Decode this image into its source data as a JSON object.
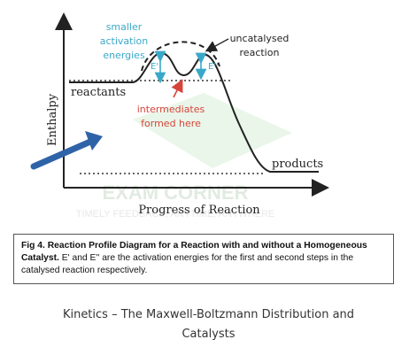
{
  "diagram": {
    "axes": {
      "y_label": "Enthalpy",
      "x_label": "Progress of Reaction"
    },
    "labels": {
      "reactants": "reactants",
      "products": "products",
      "uncatalysed_line1": "uncatalysed",
      "uncatalysed_line2": "reaction",
      "smaller_line1": "smaller",
      "smaller_line2": "activation",
      "smaller_line3": "energies",
      "intermediates_line1": "intermediates",
      "intermediates_line2": "formed here",
      "e_prime": "E'",
      "e_double_prime": "E''"
    },
    "watermark": {
      "line1": "EXAM CORNER",
      "line2": "TIMELY FEEDBACK, ANYTIME, ANYWHERE"
    },
    "colors": {
      "curve": "#222222",
      "annotation_teal": "#3aa9c9",
      "annotation_red": "#d6453a",
      "arrow_blue": "#2f63a8",
      "watermark_green": "#bfe2bf"
    }
  },
  "caption_box": {
    "title": "Fig 4. Reaction Profile Diagram for a Reaction with and without a Homogeneous Catalyst.",
    "body": " E' and E'' are the activation energies for the first and second steps in the catalysed reaction respectively."
  },
  "page_caption": {
    "line1": "Kinetics – The Maxwell-Boltzmann Distribution and",
    "line2": "Catalysts"
  }
}
